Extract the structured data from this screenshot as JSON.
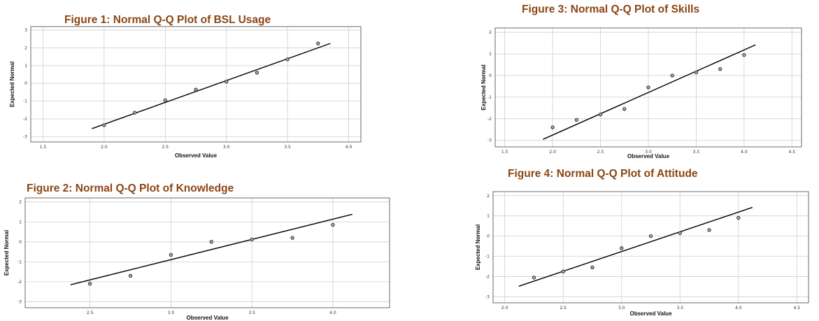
{
  "chart_data": [
    {
      "type": "scatter",
      "title": "Figure 1: Normal Q-Q Plot of BSL Usage",
      "xlabel": "Observed Value",
      "ylabel": "Expected Normal",
      "xlim": [
        1.4,
        4.1
      ],
      "ylim": [
        -3.3,
        3.2
      ],
      "xticks": [
        "1.5",
        "2.0",
        "2.5",
        "3.0",
        "3.5",
        "4.0"
      ],
      "yticks": [
        "3",
        "2",
        "1",
        "0",
        "-1",
        "-2",
        "-3"
      ],
      "grid": true,
      "points": [
        {
          "x": 2.0,
          "y": -2.35
        },
        {
          "x": 2.25,
          "y": -1.65
        },
        {
          "x": 2.5,
          "y": -0.95
        },
        {
          "x": 2.75,
          "y": -0.35
        },
        {
          "x": 3.0,
          "y": 0.1
        },
        {
          "x": 3.25,
          "y": 0.6
        },
        {
          "x": 3.5,
          "y": 1.35
        },
        {
          "x": 3.75,
          "y": 2.25
        }
      ],
      "reference_line": {
        "x": [
          1.9,
          3.85
        ],
        "y": [
          -2.55,
          2.25
        ]
      }
    },
    {
      "type": "scatter",
      "title": "Figure 2: Normal Q-Q Plot of Knowledge",
      "xlabel": "Observed Value",
      "ylabel": "Expected Normal",
      "xlim": [
        2.1,
        4.35
      ],
      "ylim": [
        -3.3,
        2.2
      ],
      "xticks": [
        "2.5",
        "3.0",
        "3.5",
        "4.0"
      ],
      "yticks": [
        "2",
        "1",
        "0",
        "-1",
        "-2",
        "-3"
      ],
      "grid": true,
      "points": [
        {
          "x": 2.5,
          "y": -2.1
        },
        {
          "x": 2.75,
          "y": -1.7
        },
        {
          "x": 3.0,
          "y": -0.65
        },
        {
          "x": 3.25,
          "y": 0.0
        },
        {
          "x": 3.5,
          "y": 0.12
        },
        {
          "x": 3.75,
          "y": 0.2
        },
        {
          "x": 4.0,
          "y": 0.85
        }
      ],
      "reference_line": {
        "x": [
          2.38,
          4.12
        ],
        "y": [
          -2.15,
          1.38
        ]
      }
    },
    {
      "type": "scatter",
      "title": "Figure 3: Normal Q-Q Plot of Skills",
      "xlabel": "Observed Value",
      "ylabel": "Expected Normal",
      "xlim": [
        1.4,
        4.6
      ],
      "ylim": [
        -3.3,
        2.2
      ],
      "xticks": [
        "1.5",
        "2.0",
        "2.5",
        "3.0",
        "3.5",
        "4.0",
        "4.5"
      ],
      "yticks": [
        "2",
        "1",
        "0",
        "-1",
        "-2",
        "-3"
      ],
      "grid": true,
      "points": [
        {
          "x": 2.0,
          "y": -2.4
        },
        {
          "x": 2.25,
          "y": -2.05
        },
        {
          "x": 2.5,
          "y": -1.8
        },
        {
          "x": 2.75,
          "y": -1.55
        },
        {
          "x": 3.0,
          "y": -0.55
        },
        {
          "x": 3.25,
          "y": 0.0
        },
        {
          "x": 3.5,
          "y": 0.15
        },
        {
          "x": 3.75,
          "y": 0.3
        },
        {
          "x": 4.0,
          "y": 0.95
        }
      ],
      "reference_line": {
        "x": [
          1.9,
          4.12
        ],
        "y": [
          -2.95,
          1.42
        ]
      }
    },
    {
      "type": "scatter",
      "title": "Figure 4: Normal Q-Q Plot of Attitude",
      "xlabel": "Observed Value",
      "ylabel": "Expected Normal",
      "xlim": [
        1.9,
        4.6
      ],
      "ylim": [
        -3.3,
        2.2
      ],
      "xticks": [
        "2.0",
        "2.5",
        "3.0",
        "3.5",
        "4.0",
        "4.5"
      ],
      "yticks": [
        "2",
        "1",
        "0",
        "-1",
        "-2",
        "-3"
      ],
      "grid": true,
      "points": [
        {
          "x": 2.25,
          "y": -2.05
        },
        {
          "x": 2.5,
          "y": -1.75
        },
        {
          "x": 2.75,
          "y": -1.55
        },
        {
          "x": 3.0,
          "y": -0.6
        },
        {
          "x": 3.25,
          "y": 0.0
        },
        {
          "x": 3.5,
          "y": 0.15
        },
        {
          "x": 3.75,
          "y": 0.3
        },
        {
          "x": 4.0,
          "y": 0.9
        }
      ],
      "reference_line": {
        "x": [
          2.12,
          4.12
        ],
        "y": [
          -2.48,
          1.42
        ]
      }
    }
  ],
  "colors": {
    "title": "#8B4513",
    "axis": "#444444",
    "grid": "#cfcfcf",
    "line": "#000000",
    "marker_fill": "#a9a9a9",
    "marker_stroke": "#222222"
  }
}
